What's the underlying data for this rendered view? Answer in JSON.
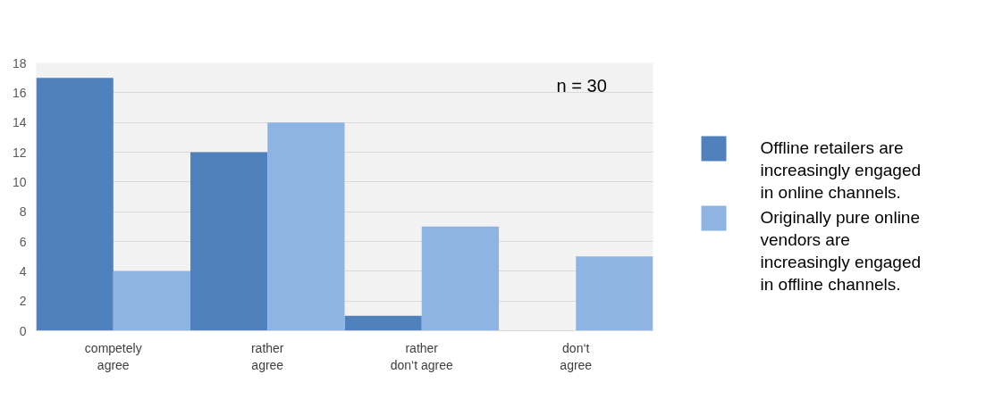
{
  "chart_data": {
    "type": "bar",
    "categories": [
      "competely\nagree",
      "rather\nagree",
      "rather\ndon‘t agree",
      "don‘t\nagree"
    ],
    "series": [
      {
        "name": "Offline retailers are increasingly engaged in online channels.",
        "color": "#4f81bd",
        "values": [
          17,
          12,
          1,
          0
        ]
      },
      {
        "name": "Originally pure online vendors are increasingly engaged in offline channels.",
        "color": "#8eb4e3",
        "values": [
          4,
          14,
          7,
          5
        ]
      }
    ],
    "ylim": [
      0,
      18
    ],
    "yticks": [
      0,
      2,
      4,
      6,
      8,
      10,
      12,
      14,
      16,
      18
    ],
    "grid": "y",
    "legend": "right",
    "annotations": [
      "n = 30"
    ]
  }
}
